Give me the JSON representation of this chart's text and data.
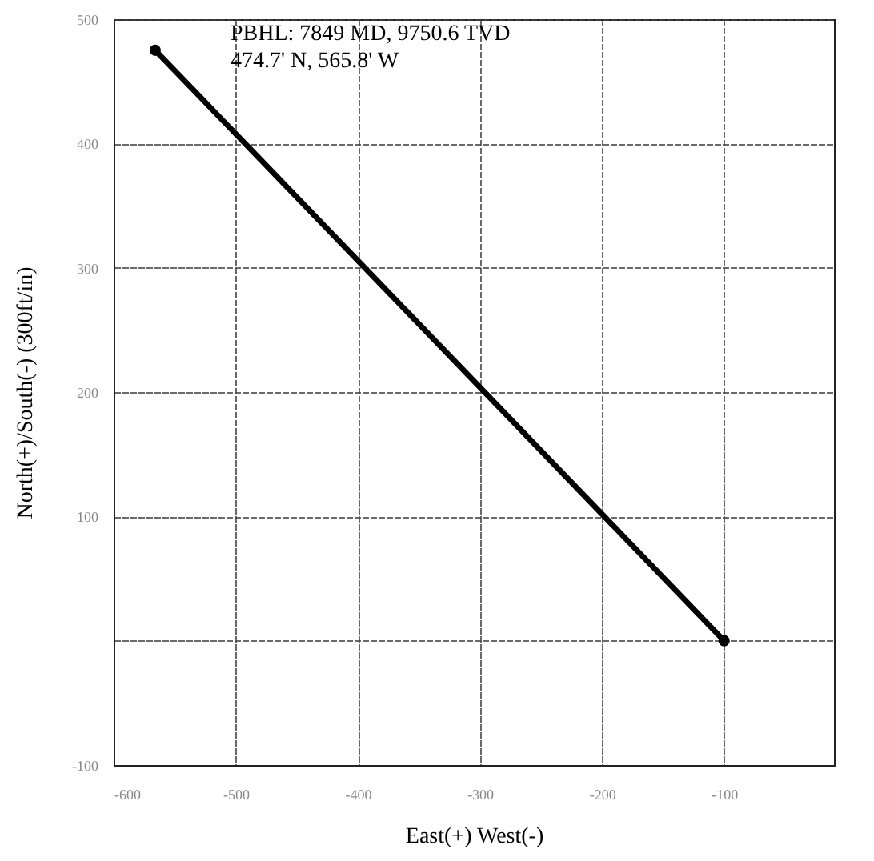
{
  "chart_data": {
    "type": "line",
    "xlabel": "East(+) West(-)",
    "ylabel": "North(+)/South(-) (300ft/in)",
    "x": [
      -566,
      -100
    ],
    "series": [
      {
        "color": "#000000",
        "values": [
          475,
          0
        ]
      }
    ],
    "xlim": [
      -600,
      -10
    ],
    "xticks": [
      -600,
      -500,
      -400,
      -300,
      -200,
      -100
    ],
    "ylim": [
      -100,
      500
    ],
    "yticks": [
      -100,
      {
        "value": 0,
        "label": null
      },
      100,
      200,
      300,
      400,
      500
    ],
    "grid": true,
    "marker": "circle",
    "line_style": "solid",
    "annotations": [
      "PBHL: 7849 MD, 9750.6 TVD",
      "474.7' N, 565.8' W"
    ]
  }
}
